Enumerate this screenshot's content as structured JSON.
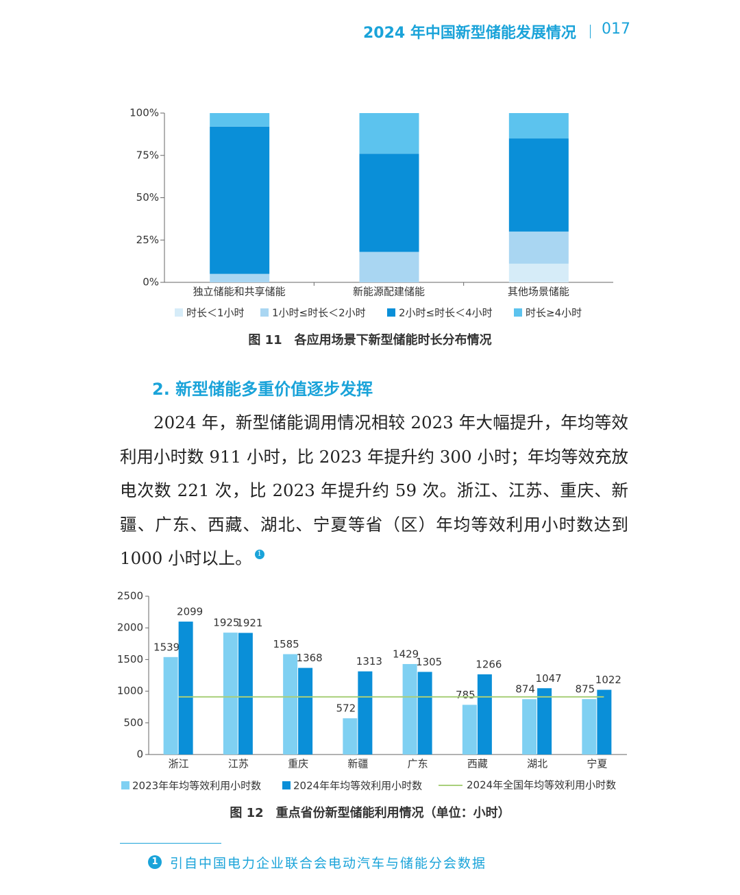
{
  "header": {
    "title": "2024 年中国新型储能发展情况",
    "page": "017"
  },
  "chart_data": [
    {
      "type": "stacked_bar",
      "caption": "图 11　各应用场景下新型储能时长分布情况",
      "categories": [
        "独立储能和共享储能",
        "新能源配建储能",
        "其他场景储能"
      ],
      "series": [
        {
          "name": "时长＜1小时",
          "color": "#d6ecf8",
          "values": [
            0,
            0,
            11
          ]
        },
        {
          "name": "1小时≤时长＜2小时",
          "color": "#a9d6f2",
          "values": [
            5,
            18,
            19
          ]
        },
        {
          "name": "2小时≤时长＜4小时",
          "color": "#0a8fd8",
          "values": [
            87,
            58,
            55
          ]
        },
        {
          "name": "时长≥4小时",
          "color": "#5cc3ee",
          "values": [
            8,
            24,
            15
          ]
        }
      ],
      "ylim": [
        0,
        100
      ],
      "yticks": [
        {
          "value": 0,
          "label": "0%"
        },
        {
          "value": 25,
          "label": "25%"
        },
        {
          "value": 50,
          "label": "50%"
        },
        {
          "value": 75,
          "label": "75%"
        },
        {
          "value": 100,
          "label": "100%"
        }
      ]
    },
    {
      "type": "grouped_bar",
      "caption": "图 12　重点省份新型储能利用情况（单位：小时）",
      "categories": [
        "浙江",
        "江苏",
        "重庆",
        "新疆",
        "广东",
        "西藏",
        "湖北",
        "宁夏"
      ],
      "series": [
        {
          "name": "2023年年均等效利用小时数",
          "color": "#7fd0f2",
          "values": [
            1539,
            1925,
            1585,
            572,
            1429,
            785,
            874,
            875
          ]
        },
        {
          "name": "2024年年均等效利用小时数",
          "color": "#0a8fd8",
          "values": [
            2099,
            1921,
            1368,
            1313,
            1305,
            1266,
            1047,
            1022
          ]
        }
      ],
      "reference_line": {
        "name": "2024年全国年均等效利用小时数",
        "value": 911,
        "color": "#a8cf7a"
      },
      "ylim": [
        0,
        2500
      ],
      "yticks": [
        0,
        500,
        1000,
        1500,
        2000,
        2500
      ]
    }
  ],
  "section": {
    "heading": "2. 新型储能多重价值逐步发挥",
    "paragraph": "2024 年，新型储能调用情况相较 2023 年大幅提升，年均等效利用小时数 911 小时，比 2023 年提升约 300 小时；年均等效充放电次数 221 次，比 2023 年提升约 59 次。浙江、江苏、重庆、新疆、广东、西藏、湖北、宁夏等省（区）年均等效利用小时数达到 1000 小时以上。",
    "note_marker": "1"
  },
  "footnote": {
    "marker": "1",
    "text": "引自中国电力企业联合会电动汽车与储能分会数据"
  }
}
